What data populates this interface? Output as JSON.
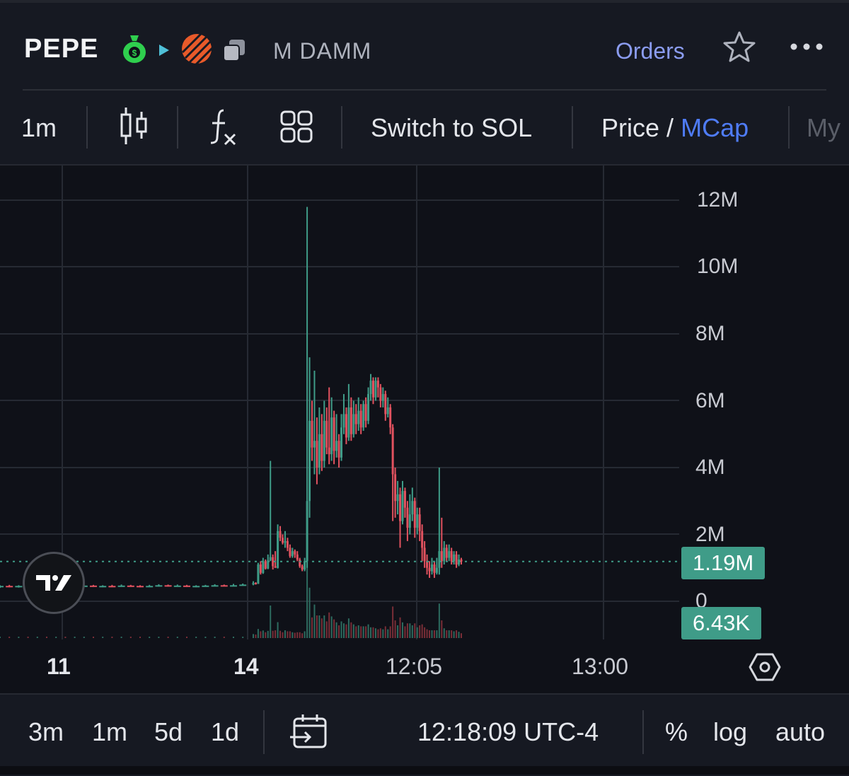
{
  "header": {
    "ticker": "PEPE",
    "pair_label": "M DAMM",
    "orders_label": "Orders",
    "icons": [
      "money-bag-icon",
      "play-badge-icon",
      "striped-logo-icon",
      "copy-icon",
      "star-icon",
      "more-icon"
    ]
  },
  "toolbar": {
    "interval": "1m",
    "switch_label": "Switch to SOL",
    "price_label": "Price",
    "slash": "/",
    "mcap_label": "MCap",
    "overflow_label": "My",
    "icons": [
      "candles-icon",
      "indicator-fx-icon",
      "layout-grid-icon"
    ]
  },
  "chart_data": {
    "type": "candlestick",
    "y_ticks": [
      "12M",
      "10M",
      "8M",
      "6M",
      "4M",
      "2M",
      "0"
    ],
    "ylim": [
      0,
      12000000
    ],
    "x_ticks": [
      "11",
      "14",
      "12:05",
      "13:00"
    ],
    "current_price_label": "1.19M",
    "current_price": 1190000,
    "volume_label": "6.43K",
    "colors": {
      "up": "#3f9c88",
      "down": "#e2525f",
      "grid": "#262a33",
      "price_line": "#3f9c88"
    },
    "candles": [
      [
        0.45,
        0.46,
        0.48,
        0.4
      ],
      [
        0.46,
        0.44,
        0.49,
        0.42
      ],
      [
        0.44,
        0.46,
        0.48,
        0.41
      ],
      [
        0.46,
        0.45,
        0.5,
        0.43
      ],
      [
        0.45,
        0.47,
        0.49,
        0.43
      ],
      [
        0.47,
        0.45,
        0.48,
        0.42
      ],
      [
        0.45,
        0.46,
        0.5,
        0.43
      ],
      [
        0.46,
        0.44,
        0.48,
        0.41
      ],
      [
        0.44,
        0.46,
        0.49,
        0.42
      ],
      [
        0.46,
        0.47,
        0.5,
        0.44
      ],
      [
        0.47,
        0.45,
        0.49,
        0.43
      ],
      [
        0.45,
        0.46,
        0.48,
        0.42
      ],
      [
        0.46,
        0.45,
        0.49,
        0.43
      ],
      [
        0.45,
        0.47,
        0.5,
        0.44
      ],
      [
        0.47,
        0.46,
        0.49,
        0.44
      ],
      [
        0.46,
        0.45,
        0.48,
        0.42
      ],
      [
        0.45,
        0.46,
        0.49,
        0.43
      ],
      [
        0.46,
        0.48,
        0.51,
        0.44
      ],
      [
        0.48,
        0.46,
        0.5,
        0.44
      ],
      [
        0.46,
        0.47,
        0.5,
        0.44
      ],
      [
        0.47,
        0.45,
        0.49,
        0.43
      ],
      [
        0.45,
        0.46,
        0.48,
        0.42
      ],
      [
        0.46,
        0.47,
        0.49,
        0.44
      ],
      [
        0.47,
        0.48,
        0.51,
        0.45
      ],
      [
        0.48,
        0.47,
        0.5,
        0.45
      ],
      [
        0.47,
        0.48,
        0.52,
        0.45
      ],
      [
        0.48,
        0.5,
        0.53,
        0.47
      ],
      [
        0.5,
        0.55,
        0.6,
        0.48
      ],
      [
        0.55,
        0.52,
        0.57,
        0.5
      ],
      [
        0.52,
        1.1,
        1.15,
        0.52
      ],
      [
        1.1,
        0.85,
        1.2,
        0.8
      ],
      [
        0.85,
        1.2,
        1.3,
        0.82
      ],
      [
        1.2,
        0.98,
        1.25,
        0.95
      ],
      [
        0.98,
        1.22,
        1.4,
        0.96
      ],
      [
        1.22,
        1.32,
        4.2,
        1.2
      ],
      [
        1.32,
        1.05,
        1.4,
        0.95
      ],
      [
        1.05,
        1.0,
        1.5,
        1.0
      ],
      [
        1.0,
        2.1,
        2.3,
        0.98
      ],
      [
        2.1,
        1.9,
        2.25,
        1.8
      ],
      [
        1.9,
        1.75,
        2.0,
        1.7
      ],
      [
        1.75,
        1.8,
        2.1,
        1.6
      ],
      [
        1.8,
        1.6,
        1.9,
        1.5
      ],
      [
        1.6,
        1.35,
        1.7,
        1.3
      ],
      [
        1.35,
        1.5,
        1.6,
        1.3
      ],
      [
        1.5,
        1.4,
        1.55,
        1.3
      ],
      [
        1.4,
        1.25,
        1.5,
        1.2
      ],
      [
        1.25,
        1.05,
        1.3,
        1.0
      ],
      [
        1.05,
        0.95,
        1.1,
        0.9
      ],
      [
        0.95,
        1.2,
        1.3,
        0.9
      ],
      [
        1.2,
        3.0,
        11.8,
        1.0
      ],
      [
        3.0,
        5.4,
        7.3,
        2.5
      ],
      [
        5.4,
        4.6,
        6.0,
        4.2
      ],
      [
        4.6,
        4.8,
        6.9,
        3.8
      ],
      [
        4.8,
        4.0,
        5.5,
        3.5
      ],
      [
        4.0,
        5.0,
        5.8,
        3.8
      ],
      [
        5.0,
        4.2,
        5.6,
        3.9
      ],
      [
        4.2,
        5.4,
        6.0,
        4.0
      ],
      [
        5.4,
        4.6,
        5.8,
        4.4
      ],
      [
        4.6,
        4.4,
        6.4,
        4.1
      ],
      [
        4.4,
        5.5,
        6.1,
        4.2
      ],
      [
        5.5,
        4.5,
        5.7,
        4.1
      ],
      [
        4.5,
        4.8,
        5.6,
        4.3
      ],
      [
        4.8,
        4.3,
        5.0,
        4.0
      ],
      [
        4.3,
        5.2,
        5.6,
        4.2
      ],
      [
        5.2,
        5.6,
        6.2,
        5.0
      ],
      [
        5.6,
        4.9,
        5.8,
        4.7
      ],
      [
        4.9,
        5.8,
        6.5,
        4.8
      ],
      [
        5.8,
        5.0,
        6.1,
        4.8
      ],
      [
        5.0,
        5.6,
        6.0,
        4.9
      ],
      [
        5.6,
        5.3,
        5.9,
        5.0
      ],
      [
        5.3,
        5.7,
        6.1,
        5.1
      ],
      [
        5.7,
        5.2,
        5.9,
        5.0
      ],
      [
        5.2,
        5.9,
        6.0,
        5.1
      ],
      [
        5.9,
        5.4,
        6.1,
        5.2
      ],
      [
        5.4,
        6.2,
        6.4,
        5.3
      ],
      [
        6.2,
        6.6,
        6.8,
        6.0
      ],
      [
        6.6,
        6.1,
        6.7,
        5.9
      ],
      [
        6.1,
        6.6,
        6.7,
        6.0
      ],
      [
        6.6,
        6.4,
        6.7,
        6.1
      ],
      [
        6.4,
        6.0,
        6.5,
        5.8
      ],
      [
        6.0,
        6.2,
        6.4,
        5.8
      ],
      [
        6.2,
        5.6,
        6.3,
        5.4
      ],
      [
        5.6,
        5.8,
        6.1,
        5.5
      ],
      [
        5.8,
        5.2,
        5.9,
        5.0
      ],
      [
        5.2,
        3.8,
        5.3,
        2.4
      ],
      [
        3.8,
        3.0,
        4.0,
        2.5
      ],
      [
        3.0,
        3.2,
        3.6,
        2.6
      ],
      [
        3.2,
        2.4,
        3.4,
        1.6
      ],
      [
        2.4,
        3.3,
        3.6,
        2.3
      ],
      [
        3.3,
        2.8,
        3.4,
        2.5
      ],
      [
        2.8,
        2.2,
        3.0,
        1.8
      ],
      [
        2.2,
        2.6,
        3.2,
        2.0
      ],
      [
        2.6,
        3.0,
        3.4,
        2.4
      ],
      [
        3.0,
        2.2,
        3.1,
        1.9
      ],
      [
        2.2,
        2.6,
        2.8,
        2.0
      ],
      [
        2.6,
        2.1,
        2.8,
        1.8
      ],
      [
        2.1,
        1.6,
        2.3,
        1.2
      ],
      [
        1.6,
        1.2,
        1.8,
        1.0
      ],
      [
        1.2,
        1.0,
        1.4,
        0.8
      ],
      [
        1.0,
        0.9,
        1.2,
        0.7
      ],
      [
        0.9,
        1.1,
        1.3,
        0.8
      ],
      [
        1.1,
        0.85,
        1.2,
        0.7
      ],
      [
        0.85,
        1.0,
        1.3,
        0.8
      ],
      [
        1.0,
        1.5,
        4.0,
        0.8
      ],
      [
        1.5,
        1.2,
        2.5,
        1.0
      ],
      [
        1.2,
        1.6,
        1.8,
        1.1
      ],
      [
        1.6,
        1.3,
        1.7,
        1.2
      ],
      [
        1.3,
        1.5,
        1.7,
        1.2
      ],
      [
        1.5,
        1.2,
        1.6,
        1.1
      ],
      [
        1.2,
        1.4,
        1.5,
        1.1
      ],
      [
        1.4,
        1.1,
        1.5,
        1.0
      ],
      [
        1.1,
        1.25,
        1.4,
        1.05
      ],
      [
        1.25,
        1.19,
        1.3,
        1.1
      ]
    ]
  },
  "bottom": {
    "ranges": [
      "3m",
      "1m",
      "5d",
      "1d"
    ],
    "time": "12:18:09 UTC-4",
    "percent": "%",
    "log": "log",
    "auto": "auto",
    "icons": [
      "date-range-icon",
      "settings-hex-icon"
    ]
  }
}
